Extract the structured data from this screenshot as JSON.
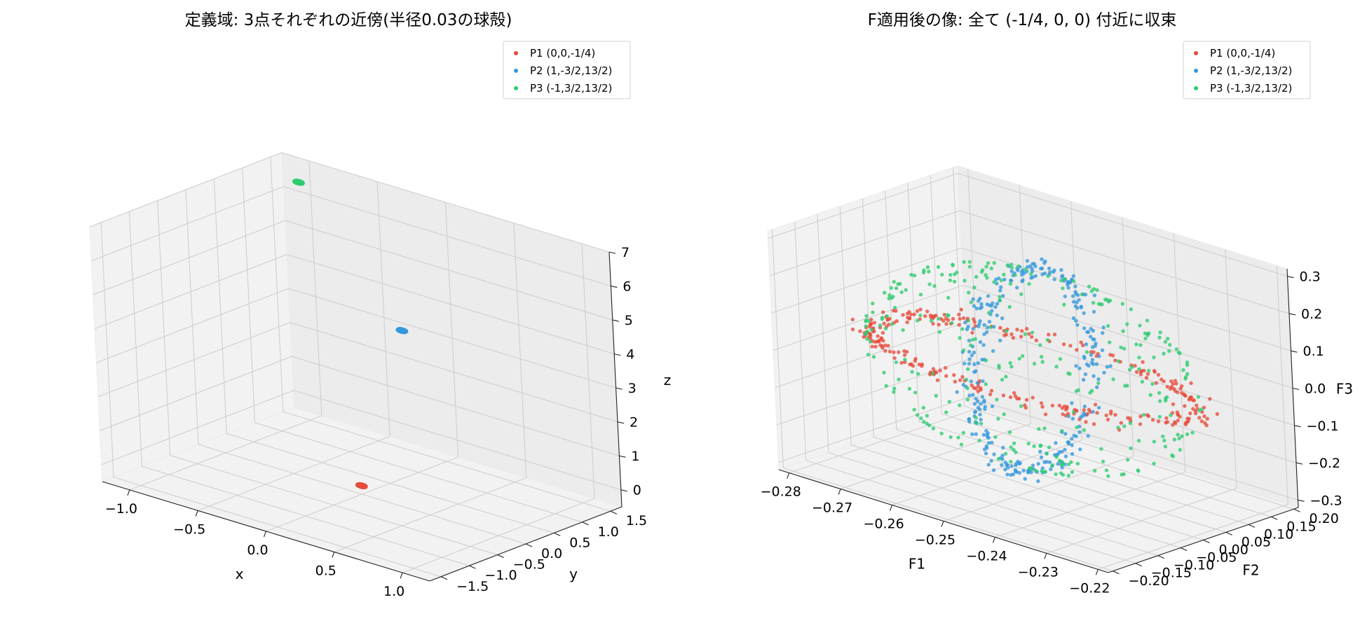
{
  "chart_data": [
    {
      "type": "scatter",
      "projection": "3d",
      "title": "定義域: 3点それぞれの近傍(半径0.03の球殻)",
      "xlabel": "x",
      "ylabel": "y",
      "zlabel": "z",
      "xlim": [
        -1.2,
        1.2
      ],
      "ylim": [
        -1.7,
        1.7
      ],
      "zlim": [
        -0.5,
        7
      ],
      "xticks": [
        -1.0,
        -0.5,
        0.0,
        0.5,
        1.0
      ],
      "yticks": [
        -1.5,
        -1.0,
        -0.5,
        0.0,
        0.5,
        1.0,
        1.5
      ],
      "zticks": [
        0,
        1,
        2,
        3,
        4,
        5,
        6,
        7
      ],
      "xtick_labels": [
        "−1.0",
        "−0.5",
        "0.0",
        "0.5",
        "1.0"
      ],
      "ytick_labels": [
        "−1.5",
        "−1.0",
        "−0.5",
        "0.0",
        "0.5",
        "1.0",
        "1.5"
      ],
      "ztick_labels": [
        "0",
        "1",
        "2",
        "3",
        "4",
        "5",
        "6",
        "7"
      ],
      "grid": true,
      "legend_position": "top-right",
      "series": [
        {
          "name": "P1 (0,0,-1/4)",
          "color": "#e74c3c",
          "center": [
            0,
            0,
            -0.25
          ],
          "shell_radius": 0.03
        },
        {
          "name": "P2 (1,-3/2,13/2)",
          "color": "#3498db",
          "center": [
            1,
            -1.5,
            6.5
          ],
          "shell_radius": 0.03
        },
        {
          "name": "P3 (-1,3/2,13/2)",
          "color": "#2ecc71",
          "center": [
            -1,
            1.5,
            6.5
          ],
          "shell_radius": 0.03
        }
      ]
    },
    {
      "type": "scatter",
      "projection": "3d",
      "title": "F適用後の像: 全て (-1/4, 0, 0) 付近に収束",
      "xlabel": "F1",
      "ylabel": "F2",
      "zlabel": "F3",
      "xlim": [
        -0.282,
        -0.218
      ],
      "ylim": [
        -0.21,
        0.21
      ],
      "zlim": [
        -0.32,
        0.32
      ],
      "xticks": [
        -0.28,
        -0.27,
        -0.26,
        -0.25,
        -0.24,
        -0.23,
        -0.22
      ],
      "yticks": [
        -0.2,
        -0.15,
        -0.1,
        -0.05,
        0.0,
        0.05,
        0.1,
        0.15,
        0.2
      ],
      "zticks": [
        -0.3,
        -0.2,
        -0.1,
        0.0,
        0.1,
        0.2,
        0.3
      ],
      "xtick_labels": [
        "−0.28",
        "−0.27",
        "−0.26",
        "−0.25",
        "−0.24",
        "−0.23",
        "−0.22"
      ],
      "ytick_labels": [
        "−0.20",
        "−0.15",
        "−0.10",
        "−0.05",
        "0.00",
        "0.05",
        "0.10",
        "0.15",
        "0.20"
      ],
      "ztick_labels": [
        "−0.3",
        "−0.2",
        "−0.1",
        "0.0",
        "0.1",
        "0.2",
        "0.3"
      ],
      "grid": true,
      "legend_position": "top-right",
      "series": [
        {
          "name": "P1 (0,0,-1/4)",
          "color": "#e74c3c",
          "description": "ring in the F1-F2 plane around (-1/4, 0, 0)",
          "center": [
            -0.25,
            0,
            0
          ],
          "spread": [
            0.03,
            0.12,
            0.0
          ]
        },
        {
          "name": "P2 (1,-3/2,13/2)",
          "color": "#3498db",
          "description": "ring in the F2-F3 plane around (-1/4, 0, 0)",
          "center": [
            -0.25,
            0,
            0
          ],
          "spread": [
            0.0,
            0.13,
            0.27
          ]
        },
        {
          "name": "P3 (-1,3/2,13/2)",
          "color": "#2ecc71",
          "description": "thin spherical shell around (-1/4, 0, 0)",
          "center": [
            -0.25,
            0,
            0
          ],
          "spread": [
            0.03,
            0.15,
            0.25
          ]
        }
      ]
    }
  ]
}
